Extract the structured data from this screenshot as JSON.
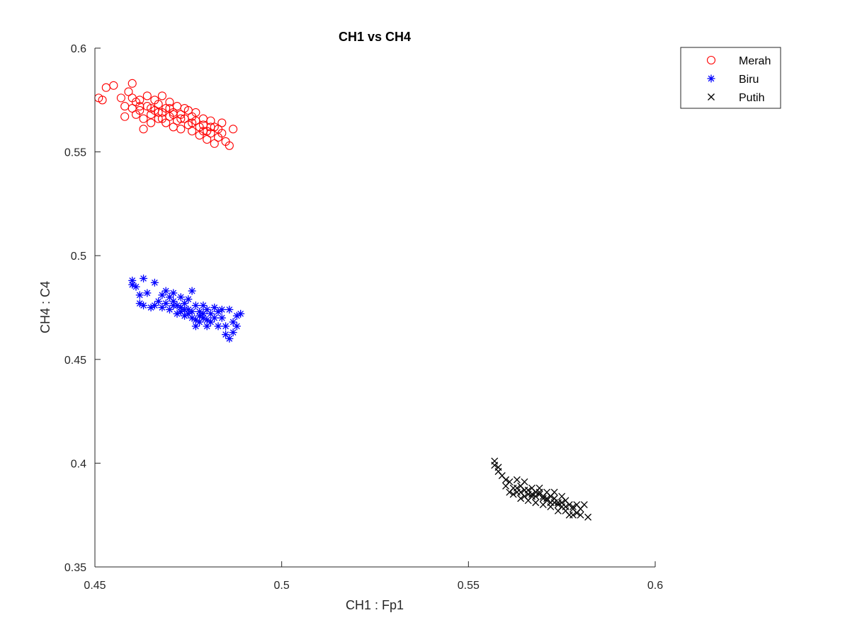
{
  "chart_data": {
    "type": "scatter",
    "title": "CH1 vs CH4",
    "xlabel": "CH1 : Fp1",
    "ylabel": "CH4 : C4",
    "xlim": [
      0.45,
      0.6
    ],
    "ylim": [
      0.35,
      0.6
    ],
    "xticks": [
      0.45,
      0.5,
      0.55,
      0.6
    ],
    "yticks": [
      0.35,
      0.4,
      0.45,
      0.5,
      0.55,
      0.6
    ],
    "xtick_labels": [
      "0.45",
      "0.5",
      "0.55",
      "0.6"
    ],
    "ytick_labels": [
      "0.35",
      "0.4",
      "0.45",
      "0.5",
      "0.55",
      "0.6"
    ],
    "grid": false,
    "legend_position": "top-right outside",
    "series": [
      {
        "name": "Merah",
        "marker": "circle",
        "color": "#ff0000",
        "points": [
          [
            0.451,
            0.576
          ],
          [
            0.452,
            0.575
          ],
          [
            0.453,
            0.581
          ],
          [
            0.455,
            0.582
          ],
          [
            0.457,
            0.576
          ],
          [
            0.458,
            0.572
          ],
          [
            0.458,
            0.567
          ],
          [
            0.459,
            0.579
          ],
          [
            0.46,
            0.583
          ],
          [
            0.46,
            0.576
          ],
          [
            0.46,
            0.571
          ],
          [
            0.461,
            0.574
          ],
          [
            0.461,
            0.568
          ],
          [
            0.462,
            0.575
          ],
          [
            0.462,
            0.57
          ],
          [
            0.463,
            0.566
          ],
          [
            0.463,
            0.561
          ],
          [
            0.464,
            0.577
          ],
          [
            0.464,
            0.572
          ],
          [
            0.465,
            0.568
          ],
          [
            0.465,
            0.564
          ],
          [
            0.466,
            0.575
          ],
          [
            0.466,
            0.57
          ],
          [
            0.467,
            0.573
          ],
          [
            0.467,
            0.566
          ],
          [
            0.468,
            0.577
          ],
          [
            0.468,
            0.569
          ],
          [
            0.469,
            0.564
          ],
          [
            0.469,
            0.571
          ],
          [
            0.47,
            0.567
          ],
          [
            0.47,
            0.574
          ],
          [
            0.471,
            0.562
          ],
          [
            0.471,
            0.569
          ],
          [
            0.472,
            0.572
          ],
          [
            0.472,
            0.565
          ],
          [
            0.473,
            0.568
          ],
          [
            0.473,
            0.561
          ],
          [
            0.474,
            0.571
          ],
          [
            0.474,
            0.566
          ],
          [
            0.475,
            0.563
          ],
          [
            0.475,
            0.57
          ],
          [
            0.476,
            0.567
          ],
          [
            0.476,
            0.56
          ],
          [
            0.477,
            0.565
          ],
          [
            0.477,
            0.569
          ],
          [
            0.478,
            0.562
          ],
          [
            0.478,
            0.558
          ],
          [
            0.479,
            0.566
          ],
          [
            0.479,
            0.563
          ],
          [
            0.48,
            0.56
          ],
          [
            0.48,
            0.556
          ],
          [
            0.481,
            0.565
          ],
          [
            0.481,
            0.559
          ],
          [
            0.482,
            0.562
          ],
          [
            0.482,
            0.554
          ],
          [
            0.483,
            0.561
          ],
          [
            0.483,
            0.557
          ],
          [
            0.484,
            0.564
          ],
          [
            0.484,
            0.559
          ],
          [
            0.485,
            0.555
          ],
          [
            0.486,
            0.553
          ],
          [
            0.487,
            0.561
          ],
          [
            0.462,
            0.572
          ],
          [
            0.465,
            0.571
          ],
          [
            0.468,
            0.566
          ],
          [
            0.47,
            0.571
          ],
          [
            0.473,
            0.566
          ],
          [
            0.476,
            0.564
          ],
          [
            0.479,
            0.56
          ],
          [
            0.481,
            0.562
          ],
          [
            0.467,
            0.569
          ],
          [
            0.471,
            0.568
          ]
        ]
      },
      {
        "name": "Biru",
        "marker": "asterisk",
        "color": "#0000ff",
        "points": [
          [
            0.46,
            0.488
          ],
          [
            0.46,
            0.486
          ],
          [
            0.461,
            0.485
          ],
          [
            0.462,
            0.481
          ],
          [
            0.462,
            0.477
          ],
          [
            0.463,
            0.489
          ],
          [
            0.463,
            0.476
          ],
          [
            0.464,
            0.482
          ],
          [
            0.465,
            0.475
          ],
          [
            0.466,
            0.487
          ],
          [
            0.466,
            0.476
          ],
          [
            0.467,
            0.478
          ],
          [
            0.468,
            0.475
          ],
          [
            0.468,
            0.481
          ],
          [
            0.469,
            0.483
          ],
          [
            0.469,
            0.477
          ],
          [
            0.47,
            0.48
          ],
          [
            0.47,
            0.474
          ],
          [
            0.471,
            0.478
          ],
          [
            0.471,
            0.482
          ],
          [
            0.472,
            0.476
          ],
          [
            0.472,
            0.472
          ],
          [
            0.473,
            0.48
          ],
          [
            0.473,
            0.475
          ],
          [
            0.474,
            0.477
          ],
          [
            0.474,
            0.471
          ],
          [
            0.475,
            0.479
          ],
          [
            0.475,
            0.474
          ],
          [
            0.476,
            0.483
          ],
          [
            0.476,
            0.47
          ],
          [
            0.477,
            0.476
          ],
          [
            0.477,
            0.466
          ],
          [
            0.478,
            0.473
          ],
          [
            0.478,
            0.468
          ],
          [
            0.479,
            0.476
          ],
          [
            0.479,
            0.47
          ],
          [
            0.48,
            0.474
          ],
          [
            0.48,
            0.466
          ],
          [
            0.481,
            0.472
          ],
          [
            0.481,
            0.468
          ],
          [
            0.482,
            0.475
          ],
          [
            0.482,
            0.47
          ],
          [
            0.483,
            0.466
          ],
          [
            0.483,
            0.473
          ],
          [
            0.484,
            0.47
          ],
          [
            0.484,
            0.474
          ],
          [
            0.485,
            0.466
          ],
          [
            0.485,
            0.462
          ],
          [
            0.486,
            0.46
          ],
          [
            0.486,
            0.474
          ],
          [
            0.487,
            0.468
          ],
          [
            0.487,
            0.463
          ],
          [
            0.488,
            0.471
          ],
          [
            0.488,
            0.466
          ],
          [
            0.489,
            0.472
          ],
          [
            0.474,
            0.474
          ],
          [
            0.476,
            0.473
          ],
          [
            0.478,
            0.471
          ],
          [
            0.48,
            0.469
          ],
          [
            0.471,
            0.476
          ],
          [
            0.473,
            0.473
          ],
          [
            0.477,
            0.469
          ],
          [
            0.479,
            0.472
          ],
          [
            0.475,
            0.472
          ]
        ]
      },
      {
        "name": "Putih",
        "marker": "x",
        "color": "#000000",
        "points": [
          [
            0.557,
            0.401
          ],
          [
            0.557,
            0.399
          ],
          [
            0.558,
            0.398
          ],
          [
            0.558,
            0.396
          ],
          [
            0.559,
            0.394
          ],
          [
            0.56,
            0.392
          ],
          [
            0.56,
            0.389
          ],
          [
            0.561,
            0.386
          ],
          [
            0.561,
            0.391
          ],
          [
            0.562,
            0.388
          ],
          [
            0.562,
            0.385
          ],
          [
            0.563,
            0.392
          ],
          [
            0.563,
            0.386
          ],
          [
            0.564,
            0.389
          ],
          [
            0.564,
            0.383
          ],
          [
            0.565,
            0.387
          ],
          [
            0.565,
            0.391
          ],
          [
            0.566,
            0.385
          ],
          [
            0.566,
            0.382
          ],
          [
            0.567,
            0.388
          ],
          [
            0.567,
            0.384
          ],
          [
            0.568,
            0.386
          ],
          [
            0.568,
            0.381
          ],
          [
            0.569,
            0.385
          ],
          [
            0.569,
            0.388
          ],
          [
            0.57,
            0.383
          ],
          [
            0.57,
            0.38
          ],
          [
            0.571,
            0.386
          ],
          [
            0.571,
            0.382
          ],
          [
            0.572,
            0.384
          ],
          [
            0.572,
            0.379
          ],
          [
            0.573,
            0.383
          ],
          [
            0.573,
            0.386
          ],
          [
            0.574,
            0.38
          ],
          [
            0.574,
            0.377
          ],
          [
            0.575,
            0.384
          ],
          [
            0.575,
            0.379
          ],
          [
            0.576,
            0.382
          ],
          [
            0.576,
            0.377
          ],
          [
            0.577,
            0.38
          ],
          [
            0.577,
            0.375
          ],
          [
            0.578,
            0.378
          ],
          [
            0.578,
            0.375
          ],
          [
            0.579,
            0.38
          ],
          [
            0.58,
            0.375
          ],
          [
            0.58,
            0.378
          ],
          [
            0.581,
            0.38
          ],
          [
            0.582,
            0.374
          ],
          [
            0.566,
            0.387
          ],
          [
            0.568,
            0.384
          ],
          [
            0.57,
            0.384
          ],
          [
            0.572,
            0.381
          ],
          [
            0.574,
            0.381
          ],
          [
            0.564,
            0.386
          ],
          [
            0.569,
            0.386
          ],
          [
            0.573,
            0.381
          ],
          [
            0.575,
            0.381
          ],
          [
            0.567,
            0.385
          ],
          [
            0.571,
            0.383
          ],
          [
            0.563,
            0.388
          ],
          [
            0.565,
            0.384
          ],
          [
            0.576,
            0.379
          ],
          [
            0.578,
            0.379
          ],
          [
            0.579,
            0.376
          ]
        ]
      }
    ]
  }
}
